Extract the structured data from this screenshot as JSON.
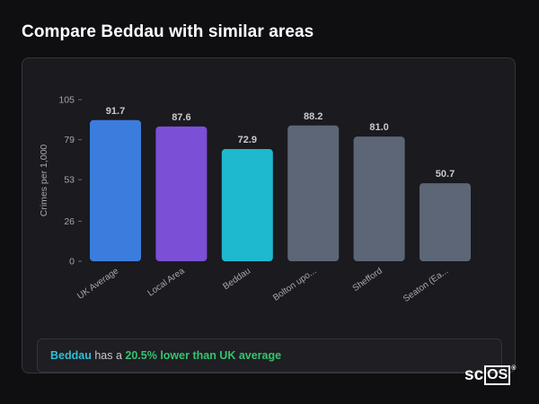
{
  "page": {
    "title": "Compare Beddau with similar areas"
  },
  "chart_data": {
    "type": "bar",
    "ylabel": "Crimes per 1,000",
    "ylim": [
      0,
      105
    ],
    "yticks": [
      0,
      26,
      53,
      79,
      105
    ],
    "categories": [
      "UK Average",
      "Local Area",
      "Beddau",
      "Bolton upo...",
      "Shefford",
      "Seaton (Ea..."
    ],
    "values": [
      91.7,
      87.6,
      72.9,
      88.2,
      81.0,
      50.7
    ],
    "value_labels": [
      "91.7",
      "87.6",
      "72.9",
      "88.2",
      "81.0",
      "50.7"
    ],
    "colors": [
      "#3b7ddd",
      "#7b4fd6",
      "#1eb8cf",
      "#5c6677",
      "#5c6677",
      "#5c6677"
    ],
    "grid": false,
    "legend": "none"
  },
  "summary": {
    "area": "Beddau",
    "connector": "has a",
    "difference": "20.5% lower than UK average"
  },
  "brand": {
    "text_sc": "sc",
    "text_os": "OS",
    "reg": "®"
  }
}
